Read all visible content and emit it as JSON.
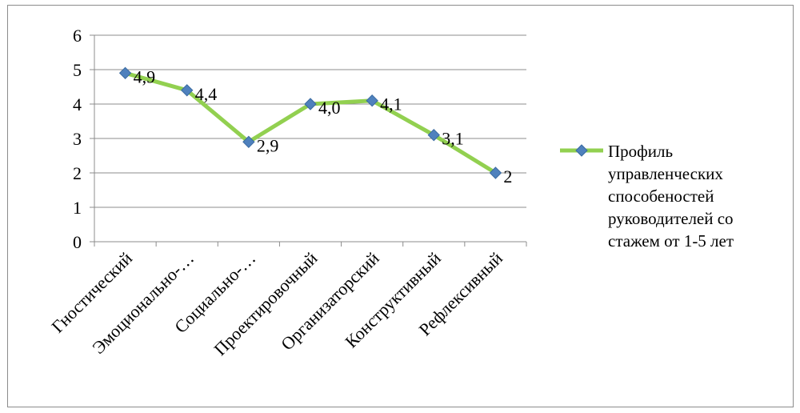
{
  "chart_data": {
    "type": "line",
    "categories": [
      "Гностический",
      "Эмоционально-…",
      "Социально-…",
      "Проектировочный",
      "Организаторский",
      "Конструктивный",
      "Рефлексивный"
    ],
    "series": [
      {
        "name": "Профиль управленческих способеностей руководителей со стажем от 1-5 лет",
        "values": [
          4.9,
          4.4,
          2.9,
          4.0,
          4.1,
          3.1,
          2
        ],
        "labels": [
          "4,9",
          "4,4",
          "2,9",
          "4,0",
          "4,1",
          "3,1",
          "2"
        ],
        "line_color": "#92d050",
        "marker_color": "#4f81bd"
      }
    ],
    "y_ticks": [
      "0",
      "1",
      "2",
      "3",
      "4",
      "5",
      "6"
    ],
    "ylim": [
      0,
      6
    ],
    "grid": true,
    "legend_position": "right",
    "legend_lines": [
      "Профиль",
      "управленческих",
      "способеностей",
      "руководителей со",
      "стажем от 1-5 лет"
    ]
  }
}
